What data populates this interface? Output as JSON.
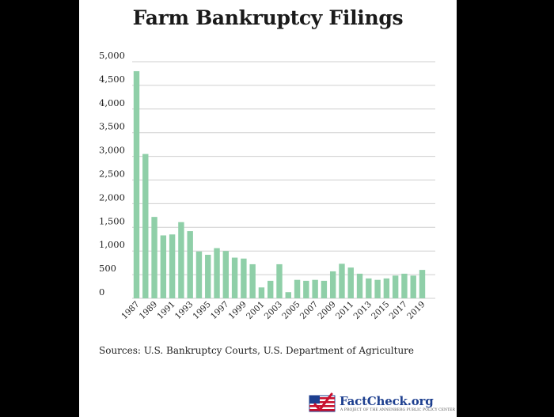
{
  "chart_data": {
    "type": "bar",
    "title": "Farm Bankruptcy Filings",
    "source": "Sources: U.S. Bankruptcy Courts, U.S. Department of Agriculture",
    "x": [
      1987,
      1988,
      1989,
      1990,
      1991,
      1992,
      1993,
      1994,
      1995,
      1996,
      1997,
      1998,
      1999,
      2000,
      2001,
      2002,
      2003,
      2004,
      2005,
      2006,
      2007,
      2008,
      2009,
      2010,
      2011,
      2012,
      2013,
      2014,
      2015,
      2016,
      2017,
      2018,
      2019
    ],
    "x_tick_labels": [
      "1987",
      "1989",
      "1991",
      "1993",
      "1995",
      "1997",
      "1999",
      "2001",
      "2003",
      "2005",
      "2007",
      "2009",
      "2011",
      "2013",
      "2015",
      "2017",
      "2019"
    ],
    "values": [
      4800,
      3050,
      1720,
      1330,
      1350,
      1610,
      1420,
      990,
      920,
      1060,
      1000,
      860,
      840,
      720,
      230,
      370,
      720,
      130,
      390,
      370,
      390,
      370,
      570,
      730,
      650,
      520,
      420,
      390,
      420,
      480,
      520,
      480,
      600
    ],
    "ylim": [
      0,
      5000
    ],
    "y_ticks": [
      0,
      500,
      1000,
      1500,
      2000,
      2500,
      3000,
      3500,
      4000,
      4500,
      5000
    ],
    "y_tick_labels": [
      "0",
      "500",
      "1,000",
      "1,500",
      "2,000",
      "2,500",
      "3,000",
      "3,500",
      "4,000",
      "4,500",
      "5,000"
    ],
    "bar_color": "#8fcfa8",
    "grid_color": "#cfcfcf",
    "grid": true,
    "xlabel": "",
    "ylabel": ""
  },
  "logo": {
    "name": "FactCheck.org",
    "tagline": "A PROJECT OF THE ANNENBERG PUBLIC POLICY CENTER"
  }
}
